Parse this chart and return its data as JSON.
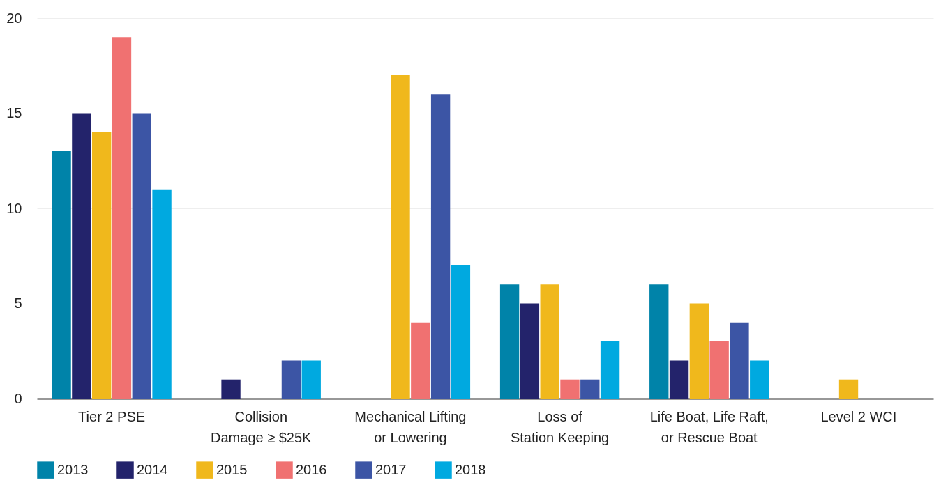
{
  "chart_data": {
    "type": "bar",
    "categories": [
      "Tier 2 PSE",
      "Collision\nDamage ≥ $25K",
      "Mechanical Lifting\nor Lowering",
      "Loss of\nStation Keeping",
      "Life Boat, Life Raft,\nor Rescue Boat",
      "Level 2 WCI"
    ],
    "series": [
      {
        "name": "2013",
        "color": "#0083a9",
        "values": [
          13,
          0,
          0,
          6,
          6,
          0
        ]
      },
      {
        "name": "2014",
        "color": "#23236b",
        "values": [
          15,
          1,
          0,
          5,
          2,
          0
        ]
      },
      {
        "name": "2015",
        "color": "#f0b81c",
        "values": [
          14,
          0,
          17,
          6,
          5,
          1
        ]
      },
      {
        "name": "2016",
        "color": "#f07171",
        "values": [
          19,
          0,
          4,
          1,
          3,
          0
        ]
      },
      {
        "name": "2017",
        "color": "#3c55a5",
        "values": [
          15,
          2,
          16,
          1,
          4,
          0
        ]
      },
      {
        "name": "2018",
        "color": "#00a9e0",
        "values": [
          11,
          2,
          7,
          3,
          2,
          0
        ]
      }
    ],
    "ylim": [
      0,
      20
    ],
    "yticks": [
      0,
      5,
      10,
      15,
      20
    ],
    "grid": true,
    "legend": "bottom"
  }
}
